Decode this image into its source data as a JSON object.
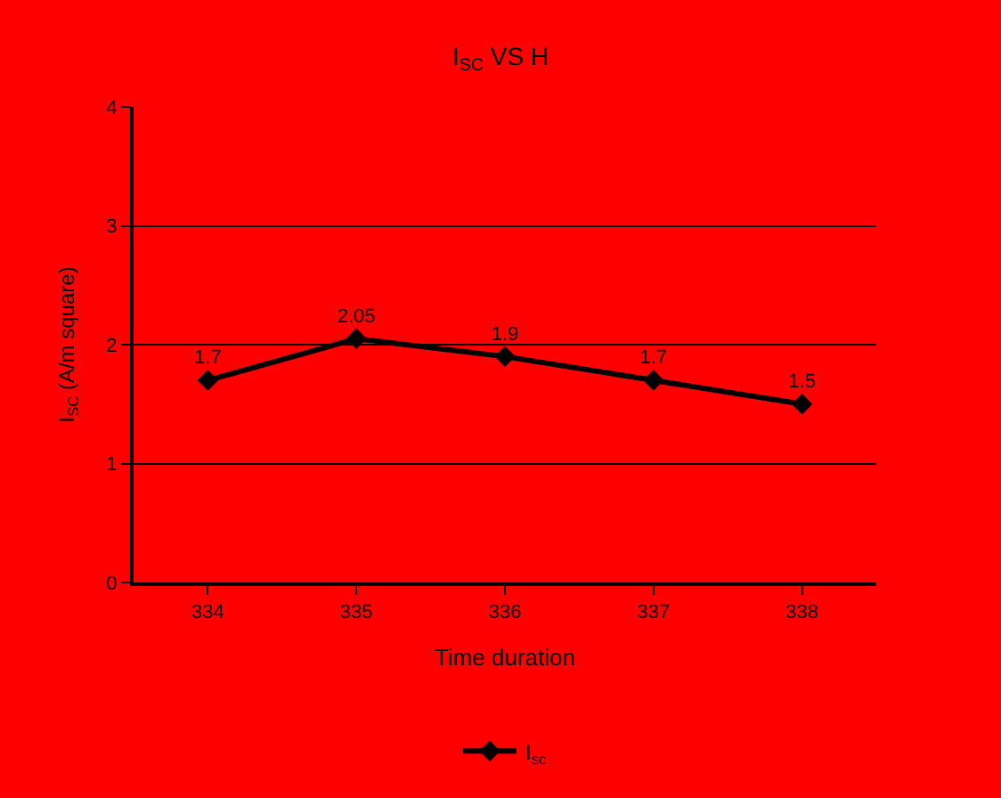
{
  "chart_data": {
    "type": "line",
    "title": "I$_{SC}$ VS H",
    "xlabel": "Time duration",
    "ylabel": "I$_{SC}$ (A/m square)",
    "categories": [
      "334",
      "335",
      "336",
      "337",
      "338"
    ],
    "series": [
      {
        "name": "I$_{sc}$",
        "color": "#000000",
        "values": [
          1.7,
          2.05,
          1.9,
          1.7,
          1.5
        ]
      }
    ],
    "ylim": [
      0,
      4
    ],
    "yticks": [
      0,
      1,
      2,
      3,
      4
    ],
    "grid": "y",
    "legend": "bottom",
    "marker": "diamond",
    "line_style": "solid",
    "data_labels": true
  }
}
